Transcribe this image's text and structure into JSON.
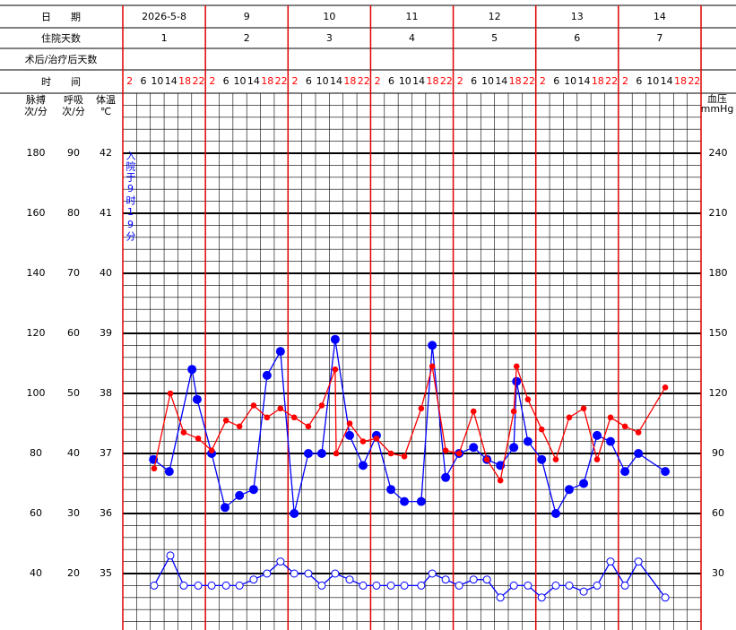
{
  "chart_data": {
    "type": "line",
    "row_labels": [
      "日　　期",
      "住院天数",
      "术后/治疗后天数",
      "时　　间"
    ],
    "dates": [
      "2026-5-8",
      "9",
      "10",
      "11",
      "12",
      "13",
      "14"
    ],
    "hospital_days": [
      1,
      2,
      3,
      4,
      5,
      6,
      7
    ],
    "times": [
      2,
      6,
      10,
      14,
      18,
      22
    ],
    "time_colors": [
      "#ff0000",
      "#000000",
      "#000000",
      "#000000",
      "#ff0000",
      "#ff0000"
    ],
    "xlim": [
      0,
      168
    ],
    "axes": [
      {
        "name": "脉搏",
        "unit": "次/分",
        "lim": [
          20,
          200
        ],
        "ticks": [
          40,
          60,
          80,
          100,
          120,
          140,
          160,
          180
        ]
      },
      {
        "name": "呼吸",
        "unit": "次/分",
        "lim": [
          10,
          100
        ],
        "ticks": [
          20,
          30,
          40,
          50,
          60,
          70,
          80,
          90
        ]
      },
      {
        "name": "体温",
        "unit": "℃",
        "lim": [
          34,
          43
        ],
        "ticks": [
          35,
          36,
          37,
          38,
          39,
          40,
          41,
          42
        ]
      }
    ],
    "y2": {
      "name": "血压",
      "unit": "mmHg",
      "lim": [
        0,
        270
      ],
      "ticks": [
        30,
        60,
        90,
        120,
        150,
        180,
        210,
        240
      ]
    },
    "annotation": "入院于9时19分",
    "series": [
      {
        "name": "体温",
        "axis": 2,
        "color": "#0000ff",
        "marker": "dot",
        "x": [
          8.9,
          13.5,
          20.1,
          21.6,
          25.8,
          29.7,
          33.9,
          38.0,
          41.9,
          45.8,
          49.8,
          53.9,
          57.8,
          61.7,
          65.9,
          69.8,
          73.7,
          77.9,
          81.8,
          86.7,
          89.9,
          93.8,
          97.7,
          101.9,
          105.8,
          109.7,
          113.6,
          114.4,
          117.7,
          121.7,
          125.8,
          129.7,
          133.9,
          137.8,
          141.7,
          145.9,
          149.8,
          157.6
        ],
        "values": [
          36.9,
          36.7,
          38.4,
          37.9,
          37.0,
          36.1,
          36.3,
          36.4,
          38.3,
          38.7,
          36.0,
          37.0,
          37.0,
          38.9,
          37.3,
          36.8,
          37.3,
          36.4,
          36.2,
          36.2,
          38.8,
          36.6,
          37.0,
          37.1,
          36.9,
          36.8,
          37.1,
          38.2,
          37.2,
          36.9,
          36.0,
          36.4,
          36.5,
          37.3,
          37.2,
          36.7,
          37.0,
          36.7
        ]
      },
      {
        "name": "脉搏",
        "axis": 0,
        "color": "#ff0000",
        "marker": "small",
        "x": [
          9.1,
          13.8,
          17.7,
          21.9,
          25.8,
          30.0,
          33.9,
          38.0,
          41.9,
          45.8,
          49.8,
          53.9,
          57.8,
          61.7,
          62.0,
          65.9,
          69.8,
          73.7,
          77.9,
          81.8,
          86.7,
          89.9,
          93.8,
          97.7,
          101.9,
          105.8,
          109.7,
          113.6,
          114.4,
          117.7,
          121.7,
          125.8,
          129.7,
          133.9,
          137.8,
          141.7,
          145.9,
          149.8,
          157.6
        ],
        "values": [
          75,
          100,
          87,
          85,
          81,
          91,
          89,
          96,
          92,
          95,
          92,
          89,
          96,
          108,
          80,
          90,
          84,
          85,
          80,
          79,
          95,
          109,
          81,
          80,
          94,
          78,
          71,
          94,
          109,
          98,
          88,
          78,
          92,
          95,
          78,
          92,
          89,
          87,
          102
        ]
      },
      {
        "name": "呼吸",
        "axis": 1,
        "color": "#0000ff",
        "marker": "ring",
        "x": [
          9.1,
          13.8,
          17.7,
          21.9,
          25.8,
          30.0,
          33.9,
          38.0,
          41.9,
          45.8,
          49.8,
          53.9,
          57.8,
          61.7,
          65.9,
          69.8,
          73.7,
          77.9,
          81.8,
          86.7,
          89.9,
          93.8,
          97.7,
          101.9,
          105.8,
          109.7,
          113.6,
          117.7,
          121.7,
          125.8,
          129.7,
          133.9,
          137.8,
          141.7,
          145.9,
          149.8,
          157.6
        ],
        "values": [
          18,
          23,
          18,
          18,
          18,
          18,
          18,
          19,
          20,
          22,
          20,
          20,
          18,
          20,
          19,
          18,
          18,
          18,
          18,
          18,
          20,
          19,
          18,
          19,
          19,
          16,
          18,
          18,
          16,
          18,
          18,
          17,
          18,
          22,
          18,
          22,
          16
        ]
      }
    ]
  }
}
